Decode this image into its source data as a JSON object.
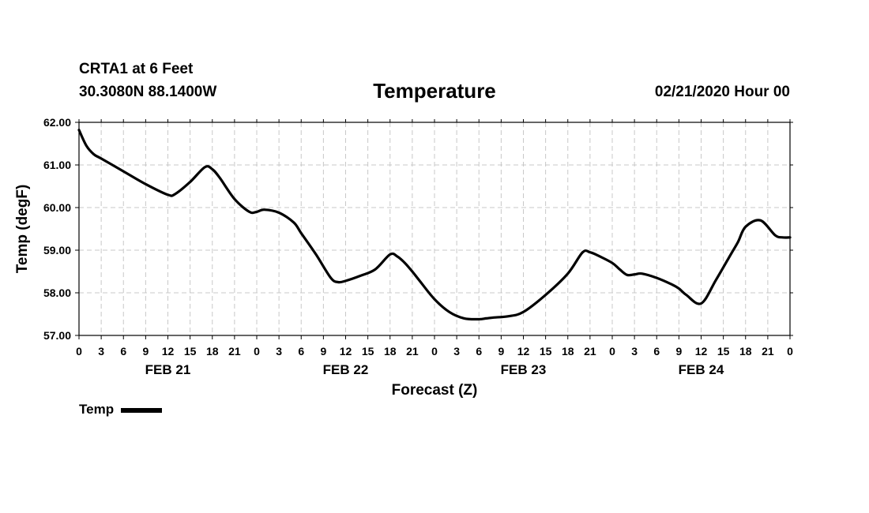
{
  "header": {
    "station": "CRTA1 at 6 Feet",
    "coords": "30.3080N 88.1400W",
    "title": "Temperature",
    "run": "02/21/2020 Hour 00"
  },
  "legend": {
    "label": "Temp"
  },
  "chart_data": {
    "type": "line",
    "title": "Temperature",
    "xlabel": "Forecast (Z)",
    "ylabel": "Temp (degF)",
    "ylim": [
      57.0,
      62.0
    ],
    "xlim": [
      0,
      96
    ],
    "grid": true,
    "yticks": [
      "57.00",
      "58.00",
      "59.00",
      "60.00",
      "61.00",
      "62.00"
    ],
    "xtick_labels": [
      "0",
      "3",
      "6",
      "9",
      "12",
      "15",
      "18",
      "21",
      "0",
      "3",
      "6",
      "9",
      "12",
      "15",
      "18",
      "21",
      "0",
      "3",
      "6",
      "9",
      "12",
      "15",
      "18",
      "21",
      "0",
      "3",
      "6",
      "9",
      "12",
      "15",
      "18",
      "21",
      "0"
    ],
    "day_labels": [
      "FEB 21",
      "FEB 22",
      "FEB 23",
      "FEB 24"
    ],
    "legend_position": "bottom-left",
    "series": [
      {
        "name": "Temp",
        "x": [
          0,
          1,
          2,
          3,
          6,
          9,
          12,
          13,
          15,
          17,
          18,
          19,
          21,
          23,
          24,
          25,
          27,
          29,
          30,
          32,
          34,
          35,
          36,
          38,
          40,
          42,
          43,
          44,
          45,
          46,
          48,
          50,
          52,
          54,
          55,
          56,
          58,
          60,
          63,
          66,
          68,
          69,
          70,
          72,
          73,
          74,
          75,
          76,
          78,
          80,
          81,
          82,
          84,
          86,
          88,
          89,
          90,
          92,
          94,
          95,
          96
        ],
        "values": [
          61.82,
          61.45,
          61.25,
          61.15,
          60.85,
          60.55,
          60.3,
          60.32,
          60.6,
          60.95,
          60.9,
          60.7,
          60.2,
          59.9,
          59.9,
          59.95,
          59.88,
          59.65,
          59.4,
          58.9,
          58.35,
          58.25,
          58.28,
          58.4,
          58.55,
          58.9,
          58.85,
          58.7,
          58.5,
          58.28,
          57.85,
          57.55,
          57.4,
          57.38,
          57.4,
          57.42,
          57.45,
          57.55,
          57.95,
          58.45,
          58.95,
          58.95,
          58.88,
          58.7,
          58.55,
          58.42,
          58.43,
          58.45,
          58.35,
          58.2,
          58.1,
          57.95,
          57.75,
          58.3,
          58.9,
          59.2,
          59.55,
          59.7,
          59.35,
          59.3,
          59.3
        ]
      }
    ]
  }
}
